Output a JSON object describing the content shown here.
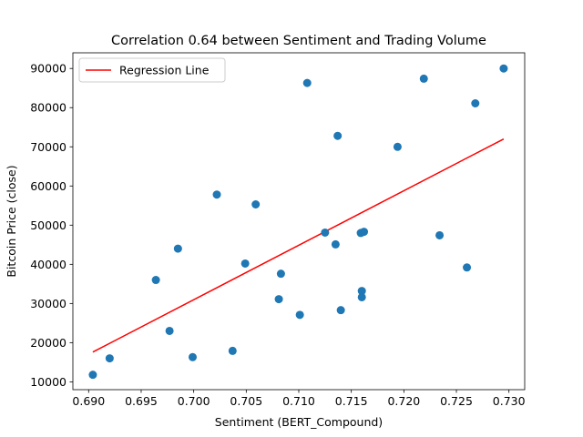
{
  "chart_data": {
    "type": "scatter",
    "title": "Correlation 0.64 between Sentiment and Trading Volume",
    "xlabel": "Sentiment (BERT_Compound)",
    "ylabel": "Bitcoin Price (close)",
    "xlim": [
      0.6885,
      0.7315
    ],
    "ylim": [
      8000,
      94000
    ],
    "xticks": [
      0.69,
      0.695,
      0.7,
      0.705,
      0.71,
      0.715,
      0.72,
      0.725,
      0.73
    ],
    "xtick_labels": [
      "0.690",
      "0.695",
      "0.700",
      "0.705",
      "0.710",
      "0.715",
      "0.720",
      "0.725",
      "0.730"
    ],
    "yticks": [
      10000,
      20000,
      30000,
      40000,
      50000,
      60000,
      70000,
      80000,
      90000
    ],
    "ytick_labels": [
      "10000",
      "20000",
      "30000",
      "40000",
      "50000",
      "60000",
      "70000",
      "80000",
      "90000"
    ],
    "grid": false,
    "legend": {
      "position": "top-left",
      "entries": [
        "Regression Line"
      ]
    },
    "colors": {
      "points": "#1f77b4",
      "regression": "#ff0000"
    },
    "points": [
      {
        "x": 0.6904,
        "y": 11800
      },
      {
        "x": 0.692,
        "y": 16000
      },
      {
        "x": 0.6964,
        "y": 36000
      },
      {
        "x": 0.6977,
        "y": 23000
      },
      {
        "x": 0.6985,
        "y": 44000
      },
      {
        "x": 0.6999,
        "y": 16300
      },
      {
        "x": 0.7022,
        "y": 57800
      },
      {
        "x": 0.7037,
        "y": 17900
      },
      {
        "x": 0.7049,
        "y": 40200
      },
      {
        "x": 0.7059,
        "y": 55300
      },
      {
        "x": 0.7081,
        "y": 31100
      },
      {
        "x": 0.7083,
        "y": 37600
      },
      {
        "x": 0.7101,
        "y": 27100
      },
      {
        "x": 0.7108,
        "y": 86300
      },
      {
        "x": 0.7125,
        "y": 48100
      },
      {
        "x": 0.7135,
        "y": 45100
      },
      {
        "x": 0.7137,
        "y": 72800
      },
      {
        "x": 0.714,
        "y": 28300
      },
      {
        "x": 0.7159,
        "y": 48000
      },
      {
        "x": 0.716,
        "y": 33200
      },
      {
        "x": 0.716,
        "y": 31600
      },
      {
        "x": 0.7162,
        "y": 48300
      },
      {
        "x": 0.7194,
        "y": 70000
      },
      {
        "x": 0.7219,
        "y": 87400
      },
      {
        "x": 0.7234,
        "y": 47400
      },
      {
        "x": 0.726,
        "y": 39200
      },
      {
        "x": 0.7268,
        "y": 81100
      },
      {
        "x": 0.7295,
        "y": 90000
      }
    ],
    "regression_line": {
      "x": [
        0.6904,
        0.7295
      ],
      "y": [
        17600,
        72000
      ]
    }
  }
}
